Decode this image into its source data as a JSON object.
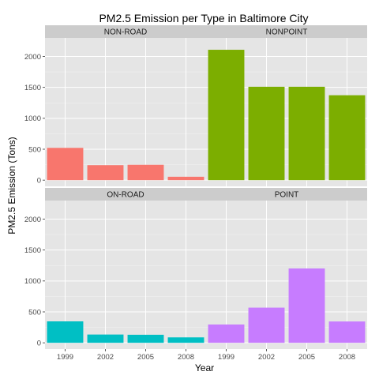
{
  "chart_data": {
    "type": "bar",
    "title": "PM2.5 Emission per Type in Baltimore City",
    "xlabel": "Year",
    "ylabel": "PM2.5 Emission (Tons)",
    "categories": [
      "1999",
      "2002",
      "2005",
      "2008"
    ],
    "ylim": [
      -100,
      2300
    ],
    "yticks": [
      0,
      500,
      1000,
      1500,
      2000
    ],
    "layout": "2x2 facet grid",
    "grid": true,
    "panel_background": "#e5e5e5",
    "strip_background": "#cccccc",
    "series": [
      {
        "name": "NON-ROAD",
        "color": "#f8766d",
        "values": [
          522,
          242,
          248,
          55
        ]
      },
      {
        "name": "NONPOINT",
        "color": "#7cae00",
        "values": [
          2108,
          1510,
          1510,
          1373
        ]
      },
      {
        "name": "ON-ROAD",
        "color": "#00bfc4",
        "values": [
          347,
          134,
          130,
          88
        ]
      },
      {
        "name": "POINT",
        "color": "#c77cff",
        "values": [
          296,
          569,
          1202,
          345
        ]
      }
    ]
  }
}
